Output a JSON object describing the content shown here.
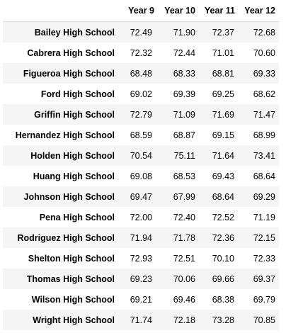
{
  "table": {
    "columns": [
      "Year 9",
      "Year 10",
      "Year 11",
      "Year 12"
    ],
    "rows": [
      {
        "school": "Bailey High School",
        "values": [
          "72.49",
          "71.90",
          "72.37",
          "72.68"
        ]
      },
      {
        "school": "Cabrera High School",
        "values": [
          "72.32",
          "72.44",
          "71.01",
          "70.60"
        ]
      },
      {
        "school": "Figueroa High School",
        "values": [
          "68.48",
          "68.33",
          "68.81",
          "69.33"
        ]
      },
      {
        "school": "Ford High School",
        "values": [
          "69.02",
          "69.39",
          "69.25",
          "68.62"
        ]
      },
      {
        "school": "Griffin High School",
        "values": [
          "72.79",
          "71.09",
          "71.69",
          "71.47"
        ]
      },
      {
        "school": "Hernandez High School",
        "values": [
          "68.59",
          "68.87",
          "69.15",
          "68.99"
        ]
      },
      {
        "school": "Holden High School",
        "values": [
          "70.54",
          "75.11",
          "71.64",
          "73.41"
        ]
      },
      {
        "school": "Huang High School",
        "values": [
          "69.08",
          "68.53",
          "69.43",
          "68.64"
        ]
      },
      {
        "school": "Johnson High School",
        "values": [
          "69.47",
          "67.99",
          "68.64",
          "69.29"
        ]
      },
      {
        "school": "Pena High School",
        "values": [
          "72.00",
          "72.40",
          "72.52",
          "71.19"
        ]
      },
      {
        "school": "Rodriguez High School",
        "values": [
          "71.94",
          "71.78",
          "72.36",
          "72.15"
        ]
      },
      {
        "school": "Shelton High School",
        "values": [
          "72.93",
          "72.51",
          "70.10",
          "72.33"
        ]
      },
      {
        "school": "Thomas High School",
        "values": [
          "69.23",
          "70.06",
          "69.66",
          "69.37"
        ]
      },
      {
        "school": "Wilson High School",
        "values": [
          "69.21",
          "69.46",
          "68.38",
          "69.79"
        ]
      },
      {
        "school": "Wright High School",
        "values": [
          "71.74",
          "72.18",
          "73.28",
          "70.85"
        ]
      }
    ]
  }
}
